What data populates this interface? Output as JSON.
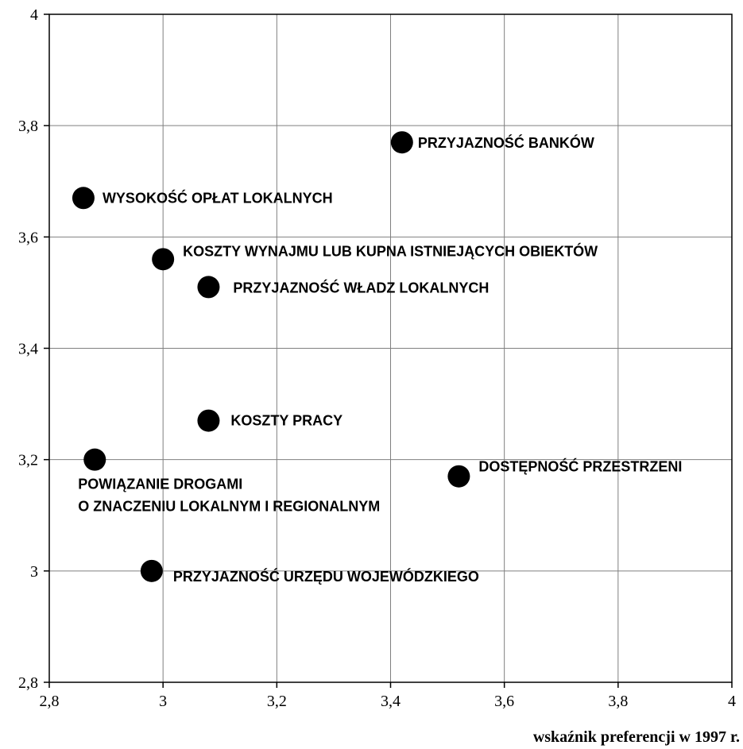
{
  "chart_data": {
    "type": "scatter",
    "title": "",
    "xlabel": "wskaźnik preferencji w 1997 r.",
    "ylabel": "",
    "xlim": [
      2.8,
      4
    ],
    "ylim": [
      2.8,
      4
    ],
    "x_ticks": [
      "2,8",
      "3",
      "3,2",
      "3,4",
      "3,6",
      "3,8",
      "4"
    ],
    "y_ticks": [
      "2,8",
      "3",
      "3,2",
      "3,4",
      "3,6",
      "3,8",
      "4"
    ],
    "x_tick_values": [
      2.8,
      3.0,
      3.2,
      3.4,
      3.6,
      3.8,
      4.0
    ],
    "y_tick_values": [
      2.8,
      3.0,
      3.2,
      3.4,
      3.6,
      3.8,
      4.0
    ],
    "grid": true,
    "legend": "none",
    "points": [
      {
        "label": "PRZYJAZNOŚĆ BANKÓW",
        "x": 3.42,
        "y": 3.77
      },
      {
        "label": "WYSOKOŚĆ OPŁAT LOKALNYCH",
        "x": 2.86,
        "y": 3.67
      },
      {
        "label": "KOSZTY WYNAJMU LUB KUPNA ISTNIEJĄCYCH OBIEKTÓW",
        "x": 3.0,
        "y": 3.56
      },
      {
        "label": "PRZYJAZNOŚĆ WŁADZ LOKALNYCH",
        "x": 3.08,
        "y": 3.51
      },
      {
        "label": "KOSZTY PRACY",
        "x": 3.08,
        "y": 3.27
      },
      {
        "label_lines": [
          "POWIĄZANIE DROGAMI",
          "O ZNACZENIU LOKALNYM I REGIONALNYM"
        ],
        "x": 2.88,
        "y": 3.2
      },
      {
        "label": "DOSTĘPNOŚĆ PRZESTRZENI",
        "x": 3.52,
        "y": 3.17
      },
      {
        "label": "PRZYJAZNOŚĆ URZĘDU WOJEWÓDZKIEGO",
        "x": 2.98,
        "y": 3.0
      }
    ]
  }
}
